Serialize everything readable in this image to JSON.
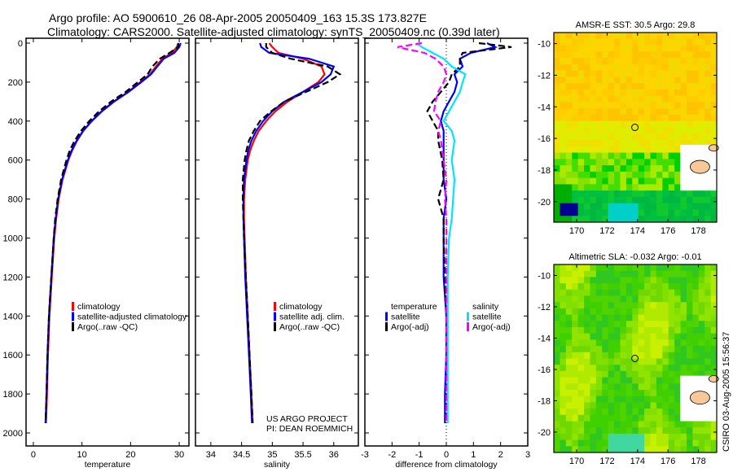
{
  "title_line1": "Argo profile: AO 5900610_26 08-Apr-2005 20050409_163 15.3S 173.827E",
  "title_line2": "Climatology: CARS2000. Satellite-adjusted climatology: synTS_20050409.nc (0.39d later)",
  "credit": "CSIRO 03-Aug-2005 15:56:37",
  "project_line1": "US ARGO PROJECT",
  "project_line2": "PI: DEAN ROEMMICH",
  "colors": {
    "climatology": "#ff0000",
    "satellite": "#0000ff",
    "argo": "#000000",
    "sal_satellite": "#00e5ff",
    "sal_argo": "#ff00ff"
  },
  "chart_data": [
    {
      "type": "line",
      "id": "temperature",
      "xlabel": "temperature",
      "ylabel": "",
      "xlim": [
        -1.5,
        32
      ],
      "ylim": [
        2050,
        0
      ],
      "xticks": [
        0,
        10,
        20,
        30
      ],
      "yticks": [
        0,
        200,
        400,
        600,
        800,
        1000,
        1200,
        1400,
        1600,
        1800,
        2000
      ],
      "legend": [
        "climatology",
        "satellite-adjusted climatology",
        "Argo(..raw -QC)"
      ],
      "legend_placement": "center-right",
      "depth": [
        0,
        20,
        50,
        80,
        120,
        160,
        200,
        250,
        300,
        350,
        400,
        450,
        500,
        550,
        600,
        700,
        800,
        900,
        1000,
        1200,
        1400,
        1600,
        1800,
        1950
      ],
      "series": [
        {
          "name": "climatology",
          "values": [
            29.8,
            29.5,
            28.5,
            26.5,
            25.2,
            24,
            22,
            19.5,
            16.5,
            14,
            12,
            10.3,
            9,
            8,
            7.2,
            6,
            5.2,
            4.7,
            4.3,
            3.8,
            3.3,
            3,
            2.8,
            2.6
          ]
        },
        {
          "name": "satellite-adjusted climatology",
          "values": [
            30.3,
            30.0,
            29,
            26.8,
            25.5,
            24.2,
            22.2,
            19.6,
            16.6,
            14.1,
            12,
            10.2,
            8.9,
            7.9,
            7.1,
            5.9,
            5.1,
            4.6,
            4.2,
            3.7,
            3.2,
            2.9,
            2.7,
            2.5
          ]
        },
        {
          "name": "Argo(..raw -QC)",
          "values": [
            29.8,
            29.8,
            28,
            26,
            24.5,
            23.5,
            21.5,
            19,
            16,
            13.5,
            11.5,
            9.8,
            8.5,
            7.5,
            6.8,
            5.7,
            5,
            4.5,
            4.2,
            3.7,
            3.2,
            2.9,
            2.7,
            2.5
          ]
        }
      ]
    },
    {
      "type": "line",
      "id": "salinity",
      "xlabel": "salinity",
      "xlim": [
        33.75,
        36.4
      ],
      "ylim": [
        2050,
        0
      ],
      "xticks": [
        34,
        34.5,
        35,
        35.5,
        36
      ],
      "legend": [
        "climatology",
        "satellite adj. clim.",
        "Argo(..raw -QC)"
      ],
      "legend_placement": "center-right",
      "depth": [
        0,
        20,
        50,
        80,
        120,
        160,
        200,
        250,
        300,
        350,
        400,
        450,
        500,
        550,
        600,
        700,
        800,
        900,
        1000,
        1200,
        1400,
        1600,
        1800,
        1950
      ],
      "series": [
        {
          "name": "climatology",
          "values": [
            34.95,
            35.0,
            35.1,
            35.5,
            35.8,
            35.85,
            35.75,
            35.5,
            35.25,
            35.05,
            34.9,
            34.78,
            34.7,
            34.64,
            34.6,
            34.56,
            34.54,
            34.54,
            34.55,
            34.57,
            34.6,
            34.63,
            34.66,
            34.68
          ]
        },
        {
          "name": "satellite adj. clim.",
          "values": [
            34.8,
            34.82,
            34.95,
            35.6,
            36.0,
            35.95,
            35.8,
            35.5,
            35.2,
            35.0,
            34.85,
            34.74,
            34.66,
            34.61,
            34.58,
            34.54,
            34.53,
            34.53,
            34.54,
            34.56,
            34.59,
            34.62,
            34.65,
            34.67
          ]
        },
        {
          "name": "Argo(..raw -QC)",
          "values": [
            34.9,
            34.9,
            35.0,
            35.3,
            35.9,
            36.1,
            35.9,
            35.55,
            35.2,
            34.98,
            34.8,
            34.7,
            34.62,
            34.58,
            34.55,
            34.52,
            34.52,
            34.53,
            34.54,
            34.57,
            34.6,
            34.63,
            34.66,
            34.68
          ]
        }
      ]
    },
    {
      "type": "line",
      "id": "difference",
      "xlabel": "difference from climatology",
      "xlim": [
        -3,
        3
      ],
      "ylim": [
        2050,
        0
      ],
      "xticks": [
        -3,
        -2,
        -1,
        0,
        1,
        2,
        3
      ],
      "legend_temperature_header": "temperature",
      "legend_salinity_header": "salinity",
      "legend": [
        "satellite",
        "Argo(-adj)",
        "satellite",
        "Argo(-adj)"
      ],
      "depth": [
        0,
        20,
        50,
        80,
        120,
        160,
        200,
        250,
        300,
        350,
        400,
        450,
        500,
        600,
        700,
        800,
        900,
        1000,
        1200,
        1400,
        1600,
        1800,
        1950
      ],
      "series": [
        {
          "name": "temperature satellite",
          "values": [
            1.5,
            1.8,
            0.9,
            0.5,
            0.6,
            0.3,
            0.4,
            0.3,
            0.1,
            -0.1,
            -0.2,
            -0.1,
            -0.1,
            -0.1,
            -0.1,
            0.0,
            -0.1,
            -0.1,
            -0.1,
            0.0,
            0.0,
            -0.05,
            -0.05
          ]
        },
        {
          "name": "temperature Argo(-adj)",
          "values": [
            1.2,
            2.4,
            0.6,
            0.5,
            0.5,
            0.2,
            0.1,
            -0.2,
            -0.5,
            -0.7,
            -0.5,
            -0.3,
            -0.3,
            -0.15,
            -0.1,
            -0.3,
            -0.1,
            -0.1,
            -0.05,
            0.0,
            0.0,
            0.0,
            0.0
          ]
        },
        {
          "name": "salinity satellite",
          "values": [
            -1.1,
            -0.9,
            -0.5,
            -0.1,
            0.2,
            0.7,
            0.6,
            0.5,
            0.3,
            0.1,
            -0.1,
            0.2,
            0.3,
            0.2,
            0.3,
            0.25,
            0.2,
            0.1,
            0.05,
            0.05,
            0.05,
            0.05,
            0.05
          ]
        },
        {
          "name": "salinity Argo(-adj)",
          "values": [
            -0.9,
            -1.8,
            -0.8,
            -0.4,
            -0.1,
            0.0,
            -0.1,
            -0.3,
            -0.4,
            -0.45,
            -0.2,
            -0.3,
            -0.2,
            -0.1,
            0.0,
            -0.05,
            0.0,
            0.0,
            0.0,
            0.0,
            0.0,
            0.0,
            0.0
          ]
        }
      ]
    },
    {
      "type": "heatmap",
      "id": "sst_map",
      "title": "AMSR-E SST: 30.5 Argo: 29.8",
      "xticks": [
        170,
        172,
        174,
        176,
        178
      ],
      "yticks": [
        -10,
        -12,
        -14,
        -16,
        -18,
        -20
      ],
      "xlim": [
        168.5,
        179.2
      ],
      "ylim": [
        -21.3,
        -9.3
      ],
      "marker": {
        "lon": 173.827,
        "lat": -15.3
      }
    },
    {
      "type": "heatmap",
      "id": "sla_map",
      "title": "Altimetric SLA: -0.032 Argo: -0.01",
      "xticks": [
        170,
        172,
        174,
        176,
        178
      ],
      "yticks": [
        -10,
        -12,
        -14,
        -16,
        -18,
        -20
      ],
      "xlim": [
        168.5,
        179.2
      ],
      "ylim": [
        -21.3,
        -9.3
      ],
      "marker": {
        "lon": 173.827,
        "lat": -15.3
      }
    }
  ]
}
